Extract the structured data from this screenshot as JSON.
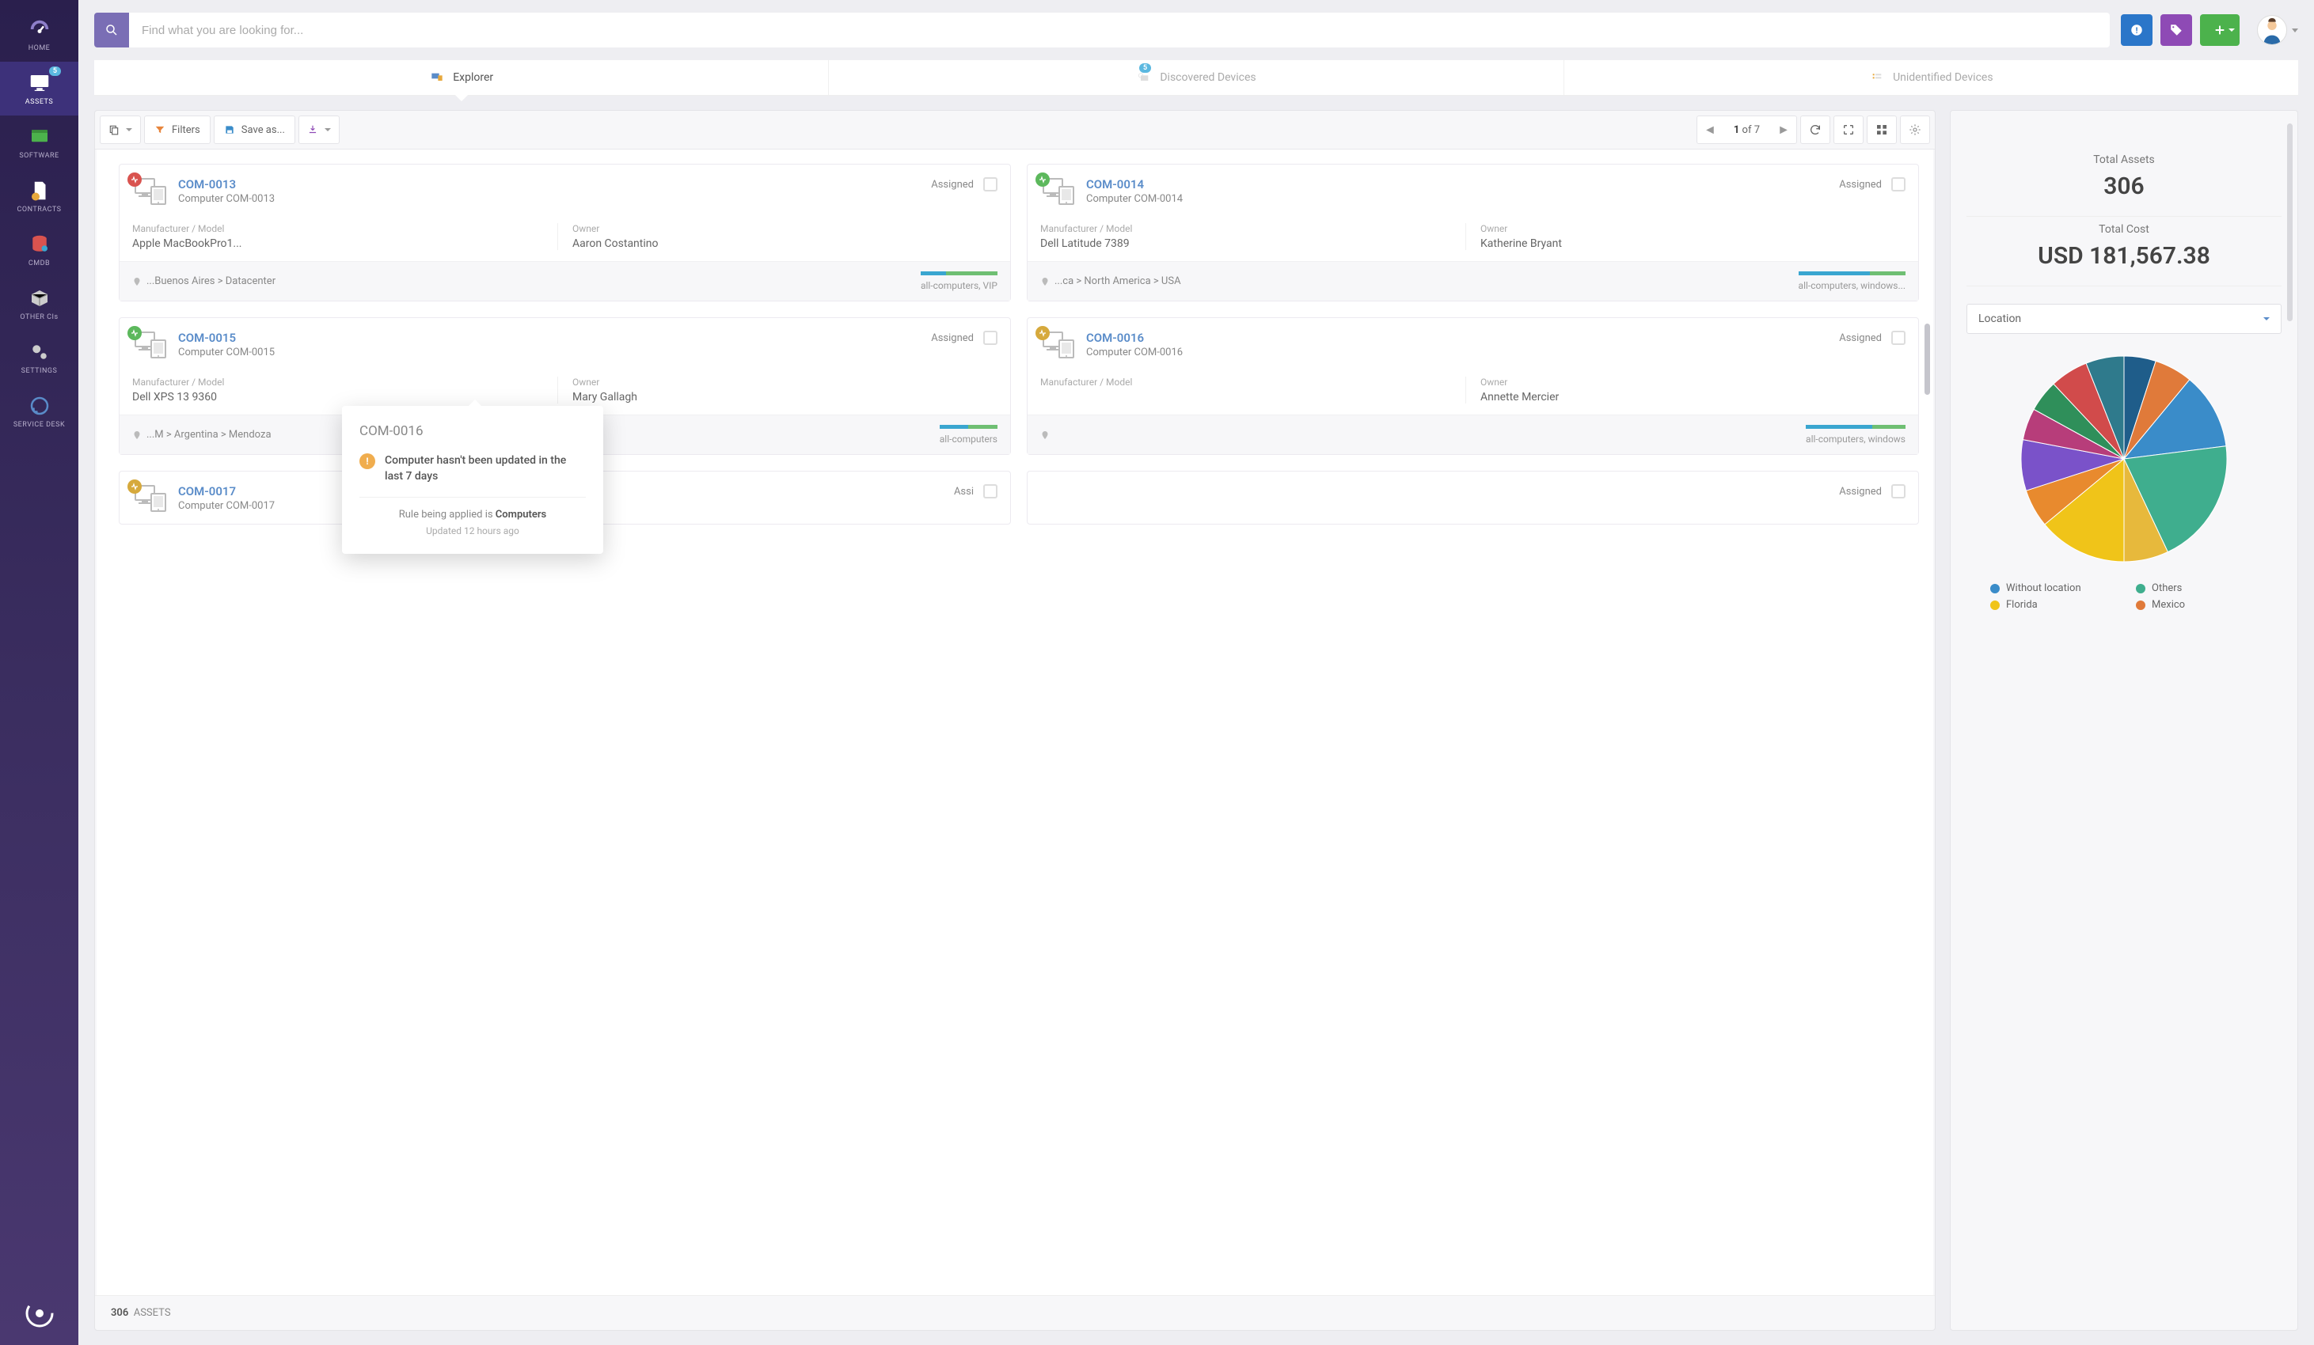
{
  "search": {
    "placeholder": "Find what you are looking for..."
  },
  "sidebar": {
    "items": [
      {
        "label": "HOME"
      },
      {
        "label": "ASSETS",
        "badge": "5"
      },
      {
        "label": "SOFTWARE"
      },
      {
        "label": "CONTRACTS"
      },
      {
        "label": "CMDB"
      },
      {
        "label": "OTHER CIs"
      },
      {
        "label": "SETTINGS"
      },
      {
        "label": "SERVICE DESK"
      }
    ]
  },
  "tabs": {
    "explorer": "Explorer",
    "discovered": "Discovered Devices",
    "discovered_badge": "5",
    "unidentified": "Unidentified Devices"
  },
  "toolbar": {
    "filters": "Filters",
    "save_as": "Save as...",
    "page_current": "1",
    "page_of": "of 7"
  },
  "cards": [
    {
      "code": "COM-0013",
      "name": "Computer COM-0013",
      "status": "Assigned",
      "dot_color": "#d9534f",
      "mfr_label": "Manufacturer / Model",
      "mfr": "Apple MacBookPro1...",
      "owner_label": "Owner",
      "owner": "Aaron Costantino",
      "loc": "...Buenos Aires > Datacenter",
      "tags": "all-computers, VIP",
      "tag_colors": [
        "#3aa6d0",
        "#3aa6d0",
        "#6fbf73",
        "#6fbf73",
        "#6fbf73",
        "#6fbf73"
      ]
    },
    {
      "code": "COM-0014",
      "name": "Computer COM-0014",
      "status": "Assigned",
      "dot_color": "#5cb85c",
      "mfr_label": "Manufacturer / Model",
      "mfr": "Dell Latitude 7389",
      "owner_label": "Owner",
      "owner": "Katherine Bryant",
      "loc": "...ca > North America > USA",
      "tags": "all-computers, windows...",
      "tag_colors": [
        "#3aa6d0",
        "#3aa6d0",
        "#3aa6d0",
        "#3aa6d0",
        "#6fbf73",
        "#6fbf73"
      ]
    },
    {
      "code": "COM-0015",
      "name": "Computer COM-0015",
      "status": "Assigned",
      "dot_color": "#5cb85c",
      "mfr_label": "Manufacturer / Model",
      "mfr": "Dell XPS 13 9360",
      "owner_label": "Owner",
      "owner": "Mary Gallagh",
      "loc": "...M > Argentina > Mendoza",
      "tags": "all-computers",
      "tag_colors": [
        "#3aa6d0",
        "#3aa6d0",
        "#3aa6d0",
        "#6fbf73",
        "#6fbf73",
        "#6fbf73"
      ]
    },
    {
      "code": "COM-0016",
      "name": "Computer COM-0016",
      "status": "Assigned",
      "dot_color": "#d6a93c",
      "mfr_label": "Manufacturer / Model",
      "mfr": "",
      "owner_label": "Owner",
      "owner": "Annette Mercier",
      "loc": "",
      "tags": "all-computers, windows",
      "tag_colors": [
        "#3aa6d0",
        "#3aa6d0",
        "#3aa6d0",
        "#3aa6d0",
        "#6fbf73",
        "#6fbf73"
      ]
    },
    {
      "code": "COM-0017",
      "name": "Computer COM-0017",
      "status": "Assi",
      "dot_color": "#d6a93c"
    },
    {
      "code": "",
      "name": "",
      "status": "Assigned"
    }
  ],
  "popover": {
    "title": "COM-0016",
    "alert": "Computer hasn't been updated in the last 7 days",
    "rule_prefix": "Rule being applied is ",
    "rule_name": "Computers",
    "updated": "Updated 12 hours ago"
  },
  "footer": {
    "count": "306",
    "label": "ASSETS"
  },
  "right": {
    "total_assets_label": "Total Assets",
    "total_assets_value": "306",
    "total_cost_label": "Total Cost",
    "total_cost_value": "USD 181,567.38",
    "select_label": "Location",
    "pie": {
      "slices": [
        {
          "color": "#1f5d8a",
          "value": 5
        },
        {
          "color": "#e07a3a",
          "value": 6
        },
        {
          "color": "#3a8cc9",
          "value": 12
        },
        {
          "color": "#3fae8e",
          "value": 20
        },
        {
          "color": "#e7b93c",
          "value": 7
        },
        {
          "color": "#f0c419",
          "value": 14
        },
        {
          "color": "#e88a2e",
          "value": 6
        },
        {
          "color": "#7a52c9",
          "value": 8
        },
        {
          "color": "#b73d7a",
          "value": 5
        },
        {
          "color": "#2f8f5a",
          "value": 5
        },
        {
          "color": "#d14b4b",
          "value": 6
        },
        {
          "color": "#2f7a8c",
          "value": 6
        }
      ]
    },
    "legend": [
      {
        "label": "Without location",
        "color": "#3a8cc9"
      },
      {
        "label": "Others",
        "color": "#3fae8e"
      },
      {
        "label": "Florida",
        "color": "#f0c419"
      },
      {
        "label": "Mexico",
        "color": "#e07a3a"
      }
    ]
  }
}
